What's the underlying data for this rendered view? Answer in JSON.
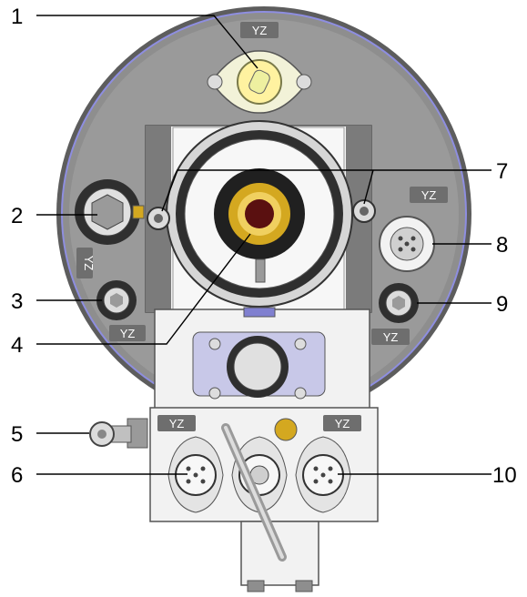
{
  "colors": {
    "housing_gray": "#8e8e8e",
    "housing_dark": "#5d5d5d",
    "ring_blue": "#8e8ee0",
    "plate_white": "#f2f2f2",
    "brass": "#d4a820",
    "tag_gray": "#6e6e6e"
  },
  "callouts": [
    {
      "number": "1",
      "target": "top-connector"
    },
    {
      "number": "2",
      "target": "left-hex-port"
    },
    {
      "number": "3",
      "target": "left-lower-hex-port"
    },
    {
      "number": "4",
      "target": "center-brass-bore"
    },
    {
      "number": "5",
      "target": "side-swivel-fitting"
    },
    {
      "number": "6",
      "target": "left-round-connector"
    },
    {
      "number": "7",
      "target": "bolt-pins"
    },
    {
      "number": "8",
      "target": "right-round-connector"
    },
    {
      "number": "9",
      "target": "right-hex-port"
    },
    {
      "number": "10",
      "target": "right-lower-round-connector"
    }
  ],
  "tags": {
    "top": "YZ",
    "upper_right": "YZ",
    "left_vertical": "YZ",
    "left_bottom": "YZ",
    "right_bottom": "YZ",
    "lower_left": "YZ",
    "lower_right": "YZ"
  }
}
